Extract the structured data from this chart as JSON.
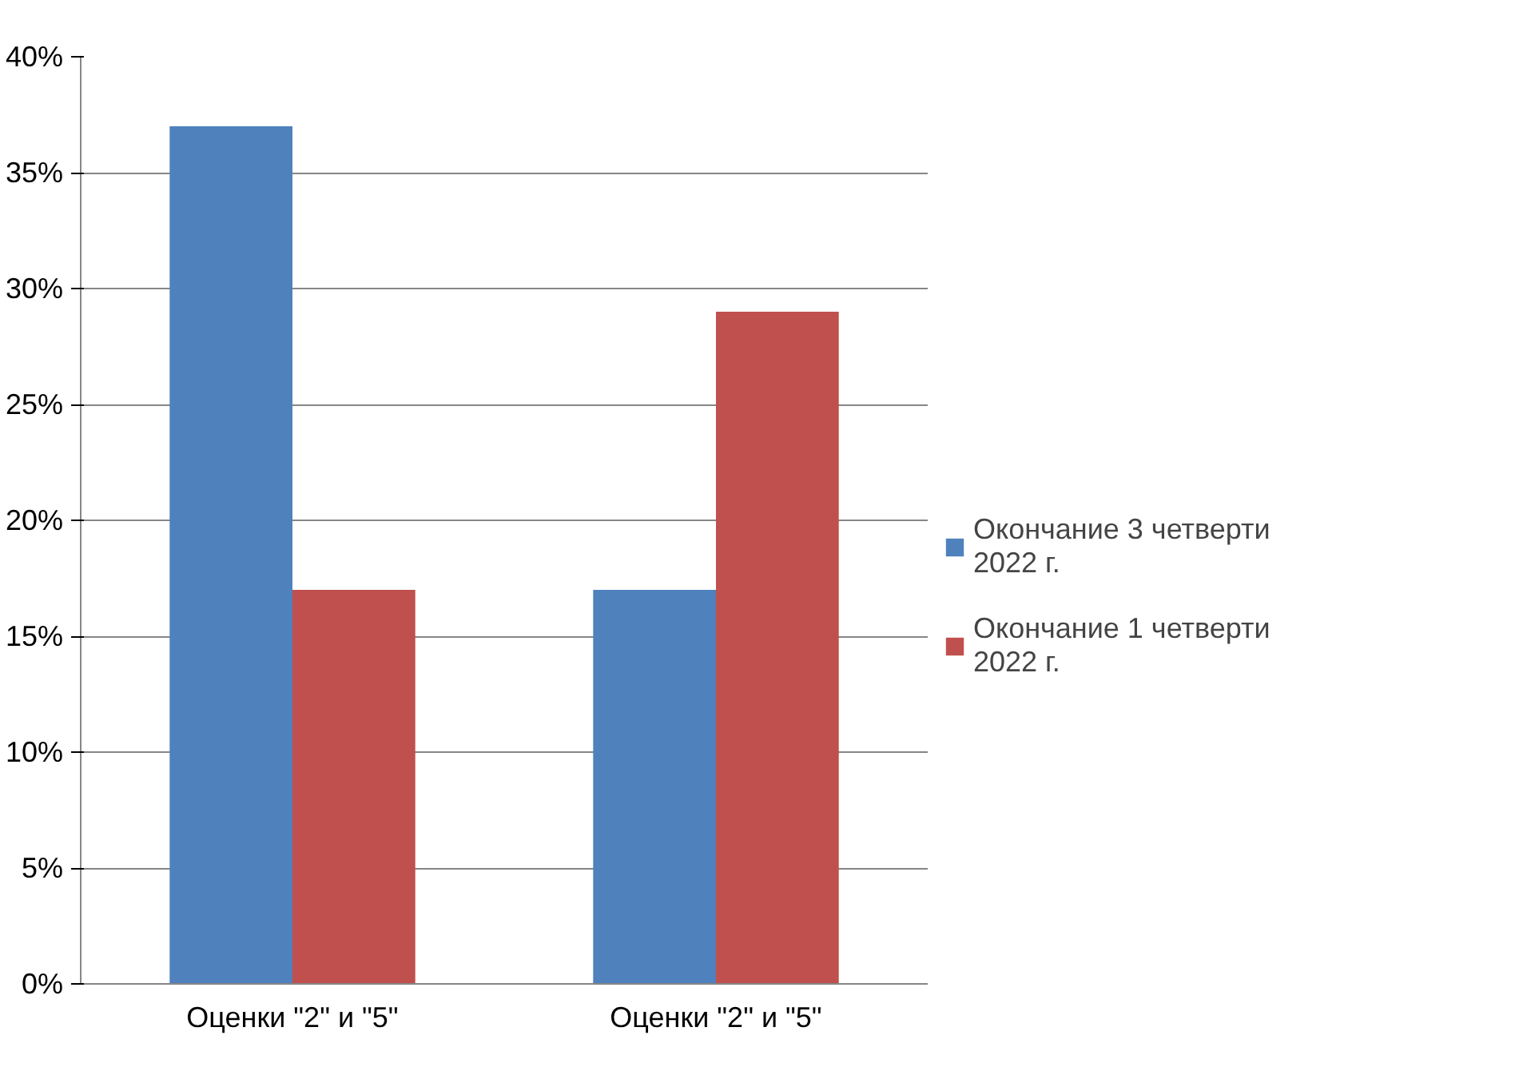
{
  "chart_data": {
    "type": "bar",
    "categories": [
      "Оценки \"2\" и \"5\"",
      "Оценки \"2\" и \"5\""
    ],
    "series": [
      {
        "name": "Окончание 3 четверти 2022 г.",
        "color": "#4f81bd",
        "values": [
          37,
          17
        ]
      },
      {
        "name": "Окончание 1 четверти 2022 г.",
        "color": "#c0504d",
        "values": [
          17,
          29
        ]
      }
    ],
    "ylim": [
      0,
      40
    ],
    "yticks": [
      {
        "value": 0,
        "label": "0%"
      },
      {
        "value": 5,
        "label": "5%"
      },
      {
        "value": 10,
        "label": "10%"
      },
      {
        "value": 15,
        "label": "15%"
      },
      {
        "value": 20,
        "label": "20%"
      },
      {
        "value": 25,
        "label": "25%"
      },
      {
        "value": 30,
        "label": "30%"
      },
      {
        "value": 35,
        "label": "35%"
      },
      {
        "value": 40,
        "label": "40%"
      }
    ],
    "grid": "y",
    "legend": "right"
  }
}
